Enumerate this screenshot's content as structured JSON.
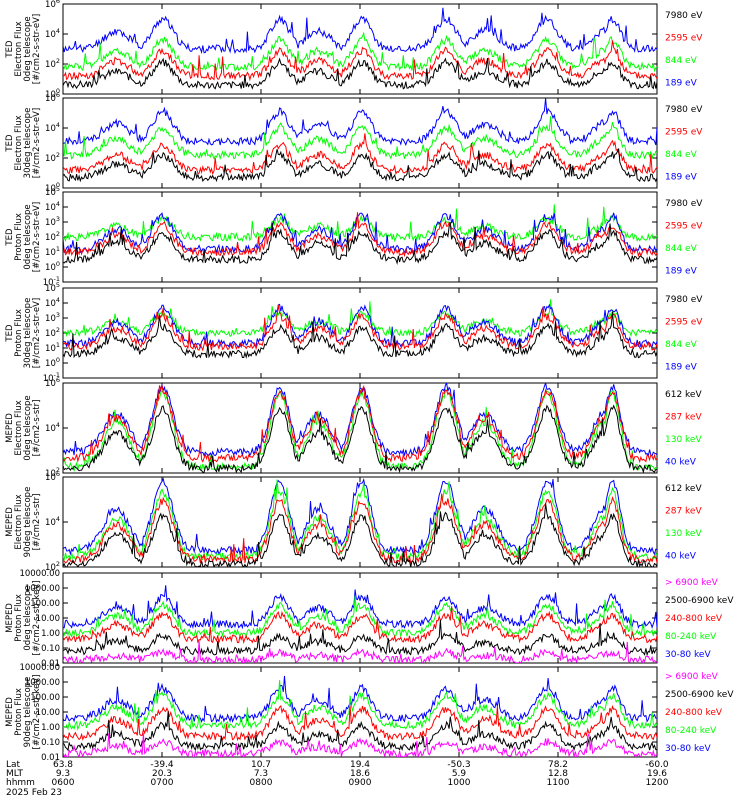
{
  "colors": {
    "blue": "#0000ff",
    "red": "#ff0000",
    "green": "#00ff00",
    "black": "#000000",
    "magenta": "#ff00ff"
  },
  "chart_data": [
    {
      "type": "line",
      "ylabel": [
        "TED",
        "Electron Flux",
        "0deg telescope",
        "[#/cm2-s-str-eV]"
      ],
      "yscale": "log",
      "ylim_exp": [
        0,
        6
      ],
      "ytick_labels": [
        "10^0",
        "10^2",
        "10^4",
        "10^6"
      ],
      "legend": [
        {
          "label": "7980 eV",
          "color": "#000000"
        },
        {
          "label": "2595 eV",
          "color": "#ff0000"
        },
        {
          "label": "844 eV",
          "color": "#00ff00"
        },
        {
          "label": "189 eV",
          "color": "#0000ff"
        }
      ],
      "series": [
        {
          "name": "189 eV",
          "color": "#0000ff",
          "base": 3.0,
          "peak": 2.0,
          "seed": 11
        },
        {
          "name": "844 eV",
          "color": "#00ff00",
          "base": 1.8,
          "peak": 1.8,
          "seed": 12
        },
        {
          "name": "2595 eV",
          "color": "#ff0000",
          "base": 1.2,
          "peak": 1.7,
          "seed": 13
        },
        {
          "name": "7980 eV",
          "color": "#000000",
          "base": 0.6,
          "peak": 1.5,
          "seed": 14
        }
      ]
    },
    {
      "type": "line",
      "ylabel": [
        "TED",
        "Electron Flux",
        "30deg telescope",
        "[#/cm2-s-str-eV]"
      ],
      "yscale": "log",
      "ylim_exp": [
        0,
        6
      ],
      "ytick_labels": [
        "10^0",
        "10^2",
        "10^4",
        "10^6"
      ],
      "legend": [
        {
          "label": "7980 eV",
          "color": "#000000"
        },
        {
          "label": "2595 eV",
          "color": "#ff0000"
        },
        {
          "label": "844 eV",
          "color": "#00ff00"
        },
        {
          "label": "189 eV",
          "color": "#0000ff"
        }
      ],
      "series": [
        {
          "name": "189 eV",
          "color": "#0000ff",
          "base": 3.1,
          "peak": 2.0,
          "seed": 21
        },
        {
          "name": "844 eV",
          "color": "#00ff00",
          "base": 2.2,
          "peak": 1.8,
          "seed": 22
        },
        {
          "name": "2595 eV",
          "color": "#ff0000",
          "base": 1.2,
          "peak": 1.7,
          "seed": 23
        },
        {
          "name": "7980 eV",
          "color": "#000000",
          "base": 0.7,
          "peak": 1.5,
          "seed": 24
        }
      ]
    },
    {
      "type": "line",
      "ylabel": [
        "TED",
        "Proton Flux",
        "0deg telescope",
        "[#/cm2-s-str-eV]"
      ],
      "yscale": "log",
      "ylim_exp": [
        -1,
        5
      ],
      "ytick_labels": [
        "10^-1",
        "10^0",
        "10^1",
        "10^2",
        "10^3",
        "10^4",
        "10^5"
      ],
      "legend": [
        {
          "label": "7980 eV",
          "color": "#000000"
        },
        {
          "label": "2595 eV",
          "color": "#ff0000"
        },
        {
          "label": "844 eV",
          "color": "#00ff00"
        },
        {
          "label": "189 eV",
          "color": "#0000ff"
        }
      ],
      "series": [
        {
          "name": "844 eV",
          "color": "#00ff00",
          "base": 2.0,
          "peak": 1.2,
          "seed": 31
        },
        {
          "name": "189 eV",
          "color": "#0000ff",
          "base": 1.2,
          "peak": 2.2,
          "seed": 32
        },
        {
          "name": "2595 eV",
          "color": "#ff0000",
          "base": 1.0,
          "peak": 1.8,
          "seed": 33
        },
        {
          "name": "7980 eV",
          "color": "#000000",
          "base": 0.5,
          "peak": 1.8,
          "seed": 34
        }
      ]
    },
    {
      "type": "line",
      "ylabel": [
        "TED",
        "Proton Flux",
        "30deg telescope",
        "[#/cm2-s-str-eV]"
      ],
      "yscale": "log",
      "ylim_exp": [
        -1,
        5
      ],
      "ytick_labels": [
        "10^-1",
        "10^0",
        "10^1",
        "10^2",
        "10^3",
        "10^4",
        "10^5"
      ],
      "legend": [
        {
          "label": "7980 eV",
          "color": "#000000"
        },
        {
          "label": "2595 eV",
          "color": "#ff0000"
        },
        {
          "label": "844 eV",
          "color": "#00ff00"
        },
        {
          "label": "189 eV",
          "color": "#0000ff"
        }
      ],
      "series": [
        {
          "name": "844 eV",
          "color": "#00ff00",
          "base": 2.0,
          "peak": 1.3,
          "seed": 41
        },
        {
          "name": "189 eV",
          "color": "#0000ff",
          "base": 1.3,
          "peak": 2.4,
          "seed": 42
        },
        {
          "name": "2595 eV",
          "color": "#ff0000",
          "base": 1.1,
          "peak": 2.0,
          "seed": 43
        },
        {
          "name": "7980 eV",
          "color": "#000000",
          "base": 0.6,
          "peak": 1.8,
          "seed": 44
        }
      ]
    },
    {
      "type": "line",
      "ylabel": [
        "MEPED",
        "Electron Flux",
        "0deg telescope",
        "[#/cm2-s-str]"
      ],
      "yscale": "log",
      "ylim_exp": [
        1,
        7
      ],
      "ytick_labels": [
        "10^2",
        "10^4",
        "10^6"
      ],
      "legend": [
        {
          "label": "612 keV",
          "color": "#000000"
        },
        {
          "label": "287 keV",
          "color": "#ff0000"
        },
        {
          "label": "130 keV",
          "color": "#00ff00"
        },
        {
          "label": "40 keV",
          "color": "#0000ff"
        }
      ],
      "series": [
        {
          "name": "40 keV",
          "color": "#0000ff",
          "base": 2.4,
          "peak": 4.3,
          "seed": 51
        },
        {
          "name": "130 keV",
          "color": "#00ff00",
          "base": 1.4,
          "peak": 4.9,
          "seed": 52
        },
        {
          "name": "287 keV",
          "color": "#ff0000",
          "base": 2.0,
          "peak": 4.4,
          "seed": 53
        },
        {
          "name": "612 keV",
          "color": "#000000",
          "base": 1.3,
          "peak": 4.0,
          "seed": 54
        }
      ]
    },
    {
      "type": "line",
      "ylabel": [
        "MEPED",
        "Electron Flux",
        "90deg telescope",
        "[#/cm2-s-str]"
      ],
      "yscale": "log",
      "ylim_exp": [
        1,
        7
      ],
      "ytick_labels": [
        "10^2",
        "10^4",
        "10^6"
      ],
      "legend": [
        {
          "label": "612 keV",
          "color": "#000000"
        },
        {
          "label": "287 keV",
          "color": "#ff0000"
        },
        {
          "label": "130 keV",
          "color": "#00ff00"
        },
        {
          "label": "40 keV",
          "color": "#0000ff"
        }
      ],
      "series": [
        {
          "name": "40 keV",
          "color": "#0000ff",
          "base": 2.1,
          "peak": 4.6,
          "seed": 61
        },
        {
          "name": "130 keV",
          "color": "#00ff00",
          "base": 1.7,
          "peak": 4.3,
          "seed": 62
        },
        {
          "name": "287 keV",
          "color": "#ff0000",
          "base": 1.5,
          "peak": 3.9,
          "seed": 63
        },
        {
          "name": "612 keV",
          "color": "#000000",
          "base": 1.2,
          "peak": 3.2,
          "seed": 64
        }
      ]
    },
    {
      "type": "line",
      "ylabel": [
        "MEPED",
        "Proton Flux",
        "0deg telescope",
        "[#/cm2-s-str-keV]"
      ],
      "yscale": "log",
      "ylim_exp": [
        -2,
        4
      ],
      "ytick_labels": [
        "0.01",
        "0.10",
        "1.00",
        "10.00",
        "100.00",
        "1000.00",
        "10000.00"
      ],
      "legend": [
        {
          "label": "> 6900 keV",
          "color": "#ff00ff"
        },
        {
          "label": "2500-6900 keV",
          "color": "#000000"
        },
        {
          "label": "240-800 keV",
          "color": "#ff0000"
        },
        {
          "label": "80-240 keV",
          "color": "#00ff00"
        },
        {
          "label": "30-80 keV",
          "color": "#0000ff"
        }
      ],
      "series": [
        {
          "name": "30-80 keV",
          "color": "#0000ff",
          "base": 0.6,
          "peak": 1.8,
          "seed": 71
        },
        {
          "name": "80-240 keV",
          "color": "#00ff00",
          "base": 0.0,
          "peak": 1.9,
          "seed": 72
        },
        {
          "name": "240-800 keV",
          "color": "#ff0000",
          "base": -0.4,
          "peak": 1.6,
          "seed": 73
        },
        {
          "name": "2500-6900 keV",
          "color": "#000000",
          "base": -1.2,
          "peak": 1.0,
          "seed": 74
        },
        {
          "name": "> 6900 keV",
          "color": "#ff00ff",
          "base": -1.8,
          "peak": 0.5,
          "seed": 75
        }
      ]
    },
    {
      "type": "line",
      "ylabel": [
        "MEPED",
        "Proton Flux",
        "90deg telescope",
        "[#/cm2-s-str-keV]"
      ],
      "yscale": "log",
      "ylim_exp": [
        -2,
        4
      ],
      "ytick_labels": [
        "0.01",
        "0.10",
        "1.00",
        "10.00",
        "100.00",
        "1000.00",
        "10000.00"
      ],
      "legend": [
        {
          "label": "> 6900 keV",
          "color": "#ff00ff"
        },
        {
          "label": "2500-6900 keV",
          "color": "#000000"
        },
        {
          "label": "240-800 keV",
          "color": "#ff0000"
        },
        {
          "label": "80-240 keV",
          "color": "#00ff00"
        },
        {
          "label": "30-80 keV",
          "color": "#0000ff"
        }
      ],
      "series": [
        {
          "name": "30-80 keV",
          "color": "#0000ff",
          "base": 0.6,
          "peak": 2.0,
          "seed": 81
        },
        {
          "name": "80-240 keV",
          "color": "#00ff00",
          "base": 0.1,
          "peak": 2.0,
          "seed": 82
        },
        {
          "name": "240-800 keV",
          "color": "#ff0000",
          "base": -0.6,
          "peak": 1.8,
          "seed": 83
        },
        {
          "name": "2500-6900 keV",
          "color": "#000000",
          "base": -1.3,
          "peak": 1.4,
          "seed": 84
        },
        {
          "name": "> 6900 keV",
          "color": "#ff00ff",
          "base": -1.8,
          "peak": 0.8,
          "seed": 85
        }
      ]
    }
  ],
  "x_axis": {
    "row_labels": [
      "Lat",
      "MLT",
      "hhmm"
    ],
    "date": "2025 Feb 23",
    "lat": [
      "63.8",
      "-39.4",
      "10.7",
      "19.4",
      "-50.3",
      "78.2",
      "-60.0"
    ],
    "mlt": [
      "9.3",
      "20.3",
      "7.3",
      "18.6",
      "5.9",
      "12.8",
      "19.6"
    ],
    "hhmm": [
      "0600",
      "0700",
      "0800",
      "0900",
      "1000",
      "1100",
      "1200"
    ]
  },
  "passes": [
    {
      "c": 0.168,
      "w": 0.024
    },
    {
      "c": 0.365,
      "w": 0.022
    },
    {
      "c": 0.503,
      "w": 0.022
    },
    {
      "c": 0.645,
      "w": 0.024
    },
    {
      "c": 0.815,
      "w": 0.024
    },
    {
      "c": 0.925,
      "w": 0.018
    }
  ],
  "bumps": [
    {
      "c": 0.43,
      "w": 0.028
    },
    {
      "c": 0.71,
      "w": 0.03
    },
    {
      "c": 0.09,
      "w": 0.03
    },
    {
      "c": 0.91,
      "w": 0.025
    }
  ]
}
